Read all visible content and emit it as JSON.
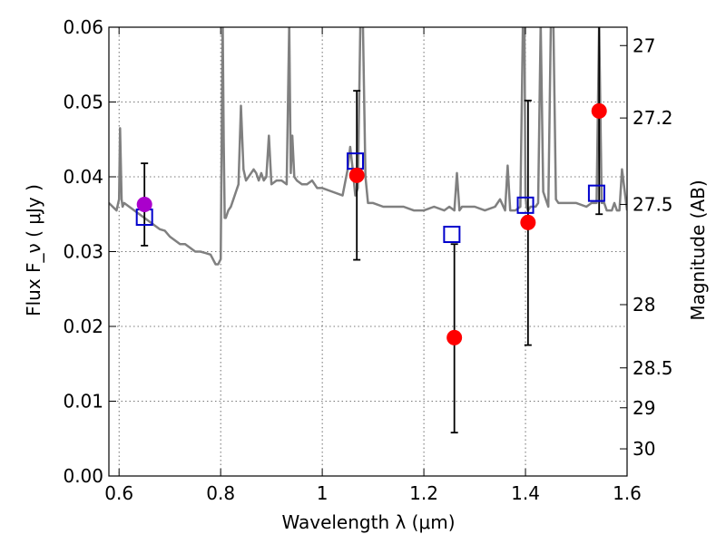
{
  "chart_data": {
    "type": "scatter",
    "title": "",
    "xlabel": "Wavelength  λ (μm)",
    "ylabel_left": "Flux  F_ν  ( μJy )",
    "ylabel_right": "Magnitude (AB)",
    "xlim": [
      0.58,
      1.6
    ],
    "ylim": [
      0.0,
      0.06
    ],
    "grid": true,
    "x_ticks": [
      0.6,
      0.8,
      1.0,
      1.2,
      1.4,
      1.6
    ],
    "x_tick_labels": [
      "0.6",
      "0.8",
      "1",
      "1.2",
      "1.4",
      "1.6"
    ],
    "y_ticks": [
      0.0,
      0.01,
      0.02,
      0.03,
      0.04,
      0.05,
      0.06
    ],
    "y_tick_labels": [
      "0.00",
      "0.01",
      "0.02",
      "0.03",
      "0.04",
      "0.05",
      "0.06"
    ],
    "right_axis_ticks": [
      27,
      27.2,
      27.5,
      28,
      28.5,
      29,
      30
    ],
    "right_axis_tick_labels": [
      "27",
      "27.2",
      "27.5",
      "28",
      "28.5",
      "29",
      "30"
    ],
    "colors": {
      "sed_line": "#808080",
      "observed": "#ff0000",
      "observed_highlight": "#aa00cc",
      "model": "#0000cc",
      "errorbar": "#000000"
    },
    "sed_model": {
      "name": "",
      "x": [
        0.58,
        0.595,
        0.6,
        0.602,
        0.605,
        0.607,
        0.61,
        0.62,
        0.63,
        0.64,
        0.65,
        0.66,
        0.67,
        0.68,
        0.69,
        0.7,
        0.71,
        0.72,
        0.73,
        0.74,
        0.75,
        0.76,
        0.77,
        0.78,
        0.79,
        0.795,
        0.8,
        0.802,
        0.804,
        0.806,
        0.808,
        0.81,
        0.815,
        0.82,
        0.825,
        0.83,
        0.835,
        0.84,
        0.845,
        0.85,
        0.86,
        0.865,
        0.87,
        0.875,
        0.88,
        0.885,
        0.89,
        0.895,
        0.9,
        0.91,
        0.92,
        0.93,
        0.935,
        0.938,
        0.941,
        0.945,
        0.95,
        0.96,
        0.97,
        0.98,
        0.99,
        1.0,
        1.02,
        1.04,
        1.05,
        1.055,
        1.06,
        1.065,
        1.07,
        1.075,
        1.08,
        1.085,
        1.09,
        1.1,
        1.12,
        1.14,
        1.16,
        1.18,
        1.2,
        1.22,
        1.24,
        1.25,
        1.26,
        1.265,
        1.27,
        1.275,
        1.28,
        1.3,
        1.32,
        1.34,
        1.35,
        1.36,
        1.365,
        1.37,
        1.38,
        1.39,
        1.395,
        1.398,
        1.4,
        1.402,
        1.405,
        1.41,
        1.42,
        1.425,
        1.43,
        1.435,
        1.44,
        1.445,
        1.45,
        1.455,
        1.46,
        1.465,
        1.47,
        1.48,
        1.5,
        1.52,
        1.53,
        1.54,
        1.545,
        1.55,
        1.555,
        1.56,
        1.57,
        1.575,
        1.58,
        1.585,
        1.59,
        1.6
      ],
      "y": [
        0.0365,
        0.0355,
        0.037,
        0.0465,
        0.037,
        0.036,
        0.0365,
        0.036,
        0.0355,
        0.035,
        0.0345,
        0.034,
        0.0335,
        0.033,
        0.0328,
        0.032,
        0.0315,
        0.031,
        0.031,
        0.0305,
        0.03,
        0.03,
        0.0298,
        0.0296,
        0.0283,
        0.0283,
        0.029,
        0.045,
        0.0605,
        0.045,
        0.0345,
        0.0345,
        0.0355,
        0.036,
        0.037,
        0.038,
        0.039,
        0.0495,
        0.041,
        0.0395,
        0.0405,
        0.041,
        0.0405,
        0.0395,
        0.0405,
        0.0395,
        0.04,
        0.0455,
        0.039,
        0.0395,
        0.0395,
        0.039,
        0.0605,
        0.0405,
        0.0455,
        0.04,
        0.0395,
        0.039,
        0.039,
        0.0395,
        0.0385,
        0.0385,
        0.038,
        0.0375,
        0.041,
        0.044,
        0.041,
        0.0375,
        0.0385,
        0.0605,
        0.0605,
        0.04,
        0.0365,
        0.0365,
        0.036,
        0.036,
        0.036,
        0.0355,
        0.0355,
        0.036,
        0.0355,
        0.036,
        0.0355,
        0.0405,
        0.0355,
        0.036,
        0.036,
        0.036,
        0.0355,
        0.036,
        0.037,
        0.0355,
        0.0415,
        0.0355,
        0.0355,
        0.036,
        0.0605,
        0.0605,
        0.0375,
        0.036,
        0.0355,
        0.036,
        0.036,
        0.0365,
        0.0605,
        0.038,
        0.037,
        0.036,
        0.0605,
        0.0605,
        0.037,
        0.0365,
        0.0365,
        0.0365,
        0.0365,
        0.036,
        0.0365,
        0.0365,
        0.0605,
        0.0365,
        0.0365,
        0.0355,
        0.0355,
        0.0365,
        0.0355,
        0.0355,
        0.041,
        0.0355
      ]
    },
    "observed_points": [
      {
        "x": 0.65,
        "y": 0.0363,
        "yerr_low": 0.0055,
        "yerr_high": 0.0055
      },
      {
        "x": 1.068,
        "y": 0.0402,
        "yerr_low": 0.0113,
        "yerr_high": 0.0113
      },
      {
        "x": 1.26,
        "y": 0.0185,
        "yerr_low": 0.0127,
        "yerr_high": 0.0125
      },
      {
        "x": 1.405,
        "y": 0.0339,
        "yerr_low": 0.0164,
        "yerr_high": 0.0163
      },
      {
        "x": 1.545,
        "y": 0.0488,
        "yerr_low": 0.0138,
        "yerr_high": 0.012
      }
    ],
    "model_points": [
      {
        "x": 0.65,
        "y": 0.0346
      },
      {
        "x": 1.065,
        "y": 0.0421
      },
      {
        "x": 1.255,
        "y": 0.0323
      },
      {
        "x": 1.4,
        "y": 0.0362
      },
      {
        "x": 1.54,
        "y": 0.0378
      }
    ]
  }
}
